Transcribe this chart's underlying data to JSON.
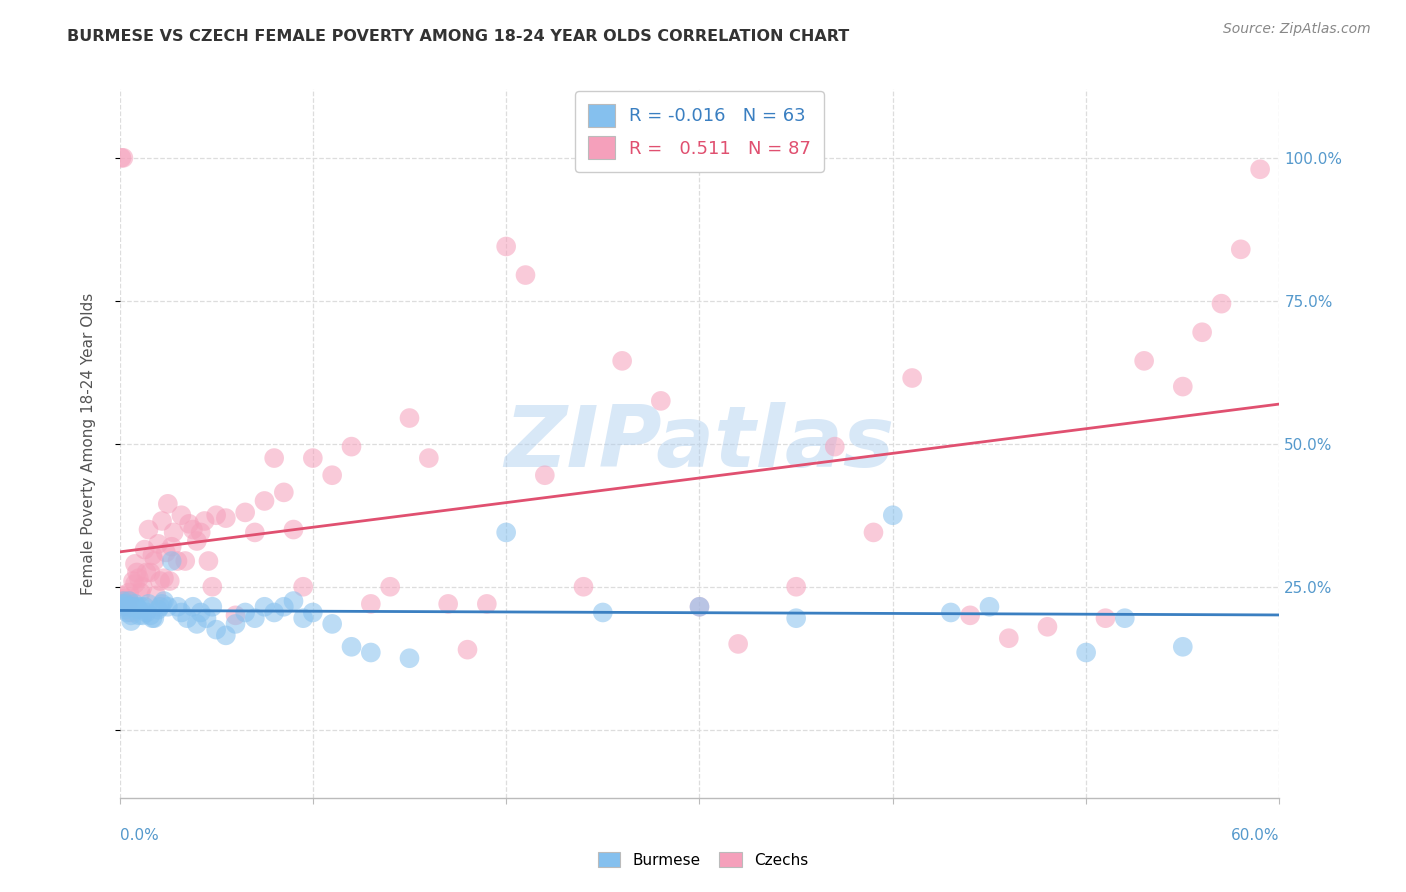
{
  "title": "BURMESE VS CZECH FEMALE POVERTY AMONG 18-24 YEAR OLDS CORRELATION CHART",
  "source": "Source: ZipAtlas.com",
  "ylabel": "Female Poverty Among 18-24 Year Olds",
  "watermark": "ZIPatlas",
  "burmese_R": -0.016,
  "burmese_N": 63,
  "czech_R": 0.511,
  "czech_N": 87,
  "burmese_color": "#85C0EE",
  "czech_color": "#F5A0BB",
  "burmese_line_color": "#3A7FC1",
  "czech_line_color": "#E05070",
  "background_color": "#FFFFFF",
  "grid_color": "#DDDDDD",
  "axis_color": "#5599CC",
  "watermark_color": "#AACCEE",
  "xlim": [
    0.0,
    0.6
  ],
  "ylim": [
    -0.12,
    1.12
  ],
  "right_yticks": [
    1.0,
    0.75,
    0.5,
    0.25
  ],
  "right_yticklabels": [
    "100.0%",
    "75.0%",
    "50.0%",
    "25.0%"
  ],
  "burmese_x": [
    0.001,
    0.002,
    0.002,
    0.003,
    0.003,
    0.004,
    0.004,
    0.005,
    0.005,
    0.006,
    0.006,
    0.007,
    0.008,
    0.009,
    0.01,
    0.01,
    0.011,
    0.012,
    0.013,
    0.014,
    0.015,
    0.016,
    0.017,
    0.018,
    0.02,
    0.021,
    0.022,
    0.023,
    0.025,
    0.027,
    0.03,
    0.032,
    0.035,
    0.038,
    0.04,
    0.042,
    0.045,
    0.048,
    0.05,
    0.055,
    0.06,
    0.065,
    0.07,
    0.075,
    0.08,
    0.085,
    0.09,
    0.095,
    0.1,
    0.11,
    0.12,
    0.13,
    0.15,
    0.2,
    0.25,
    0.3,
    0.35,
    0.4,
    0.43,
    0.45,
    0.5,
    0.52,
    0.55
  ],
  "burmese_y": [
    0.22,
    0.215,
    0.225,
    0.21,
    0.22,
    0.215,
    0.205,
    0.225,
    0.215,
    0.19,
    0.2,
    0.215,
    0.22,
    0.215,
    0.2,
    0.21,
    0.215,
    0.2,
    0.215,
    0.205,
    0.22,
    0.2,
    0.195,
    0.195,
    0.21,
    0.215,
    0.22,
    0.225,
    0.215,
    0.295,
    0.215,
    0.205,
    0.195,
    0.215,
    0.185,
    0.205,
    0.195,
    0.215,
    0.175,
    0.165,
    0.185,
    0.205,
    0.195,
    0.215,
    0.205,
    0.215,
    0.225,
    0.195,
    0.205,
    0.185,
    0.145,
    0.135,
    0.125,
    0.345,
    0.205,
    0.215,
    0.195,
    0.375,
    0.205,
    0.215,
    0.135,
    0.195,
    0.145
  ],
  "czech_x": [
    0.001,
    0.001,
    0.002,
    0.002,
    0.003,
    0.003,
    0.004,
    0.005,
    0.005,
    0.006,
    0.007,
    0.008,
    0.008,
    0.009,
    0.01,
    0.011,
    0.012,
    0.013,
    0.014,
    0.015,
    0.016,
    0.017,
    0.018,
    0.019,
    0.02,
    0.021,
    0.022,
    0.023,
    0.024,
    0.025,
    0.026,
    0.027,
    0.028,
    0.03,
    0.032,
    0.034,
    0.036,
    0.038,
    0.04,
    0.042,
    0.044,
    0.046,
    0.048,
    0.05,
    0.055,
    0.06,
    0.065,
    0.07,
    0.075,
    0.08,
    0.085,
    0.09,
    0.095,
    0.1,
    0.11,
    0.12,
    0.13,
    0.14,
    0.15,
    0.16,
    0.17,
    0.18,
    0.19,
    0.2,
    0.21,
    0.22,
    0.24,
    0.26,
    0.28,
    0.3,
    0.32,
    0.35,
    0.37,
    0.39,
    0.41,
    0.44,
    0.46,
    0.48,
    0.51,
    0.53,
    0.55,
    0.56,
    0.57,
    0.58,
    0.59,
    0.001,
    0.002
  ],
  "czech_y": [
    0.22,
    0.235,
    0.215,
    0.225,
    0.22,
    0.23,
    0.225,
    0.225,
    0.24,
    0.205,
    0.26,
    0.255,
    0.29,
    0.275,
    0.265,
    0.24,
    0.25,
    0.315,
    0.275,
    0.35,
    0.275,
    0.305,
    0.295,
    0.235,
    0.325,
    0.26,
    0.365,
    0.265,
    0.31,
    0.395,
    0.26,
    0.32,
    0.345,
    0.295,
    0.375,
    0.295,
    0.36,
    0.35,
    0.33,
    0.345,
    0.365,
    0.295,
    0.25,
    0.375,
    0.37,
    0.2,
    0.38,
    0.345,
    0.4,
    0.475,
    0.415,
    0.35,
    0.25,
    0.475,
    0.445,
    0.495,
    0.22,
    0.25,
    0.545,
    0.475,
    0.22,
    0.14,
    0.22,
    0.845,
    0.795,
    0.445,
    0.25,
    0.645,
    0.575,
    0.215,
    0.15,
    0.25,
    0.495,
    0.345,
    0.615,
    0.2,
    0.16,
    0.18,
    0.195,
    0.645,
    0.6,
    0.695,
    0.745,
    0.84,
    0.98,
    1.0,
    1.0
  ]
}
